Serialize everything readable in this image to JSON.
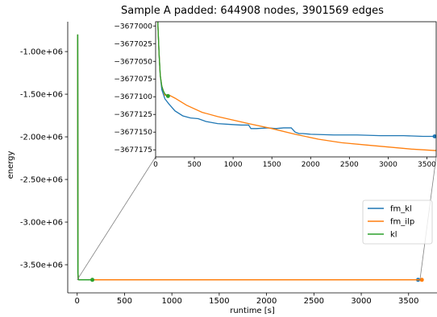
{
  "chart_data": {
    "type": "line",
    "title": "Sample A padded: 644908 nodes, 3901569 edges",
    "xlabel": "runtime [s]",
    "ylabel": "energy",
    "xlim": [
      -100,
      3800
    ],
    "ylim": [
      -3830000,
      -650000
    ],
    "xticks": [
      0,
      500,
      1000,
      1500,
      2000,
      2500,
      3000,
      3500
    ],
    "xtick_labels": [
      "0",
      "500",
      "1000",
      "1500",
      "2000",
      "2500",
      "3000",
      "3500"
    ],
    "yticks": [
      -1000000,
      -1500000,
      -2000000,
      -2500000,
      -3000000,
      -3500000
    ],
    "ytick_labels": [
      "-1.00e+06",
      "-1.50e+06",
      "-2.00e+06",
      "-2.50e+06",
      "-3.00e+06",
      "-3.50e+06"
    ],
    "legend": {
      "position": "right",
      "entries": [
        "fm_kl",
        "fm_ilp",
        "kl"
      ]
    },
    "series": [
      {
        "name": "fm_kl",
        "color": "#1f77b4",
        "x": [
          5,
          8,
          12,
          20,
          30,
          45,
          60,
          80,
          120,
          170,
          250,
          350,
          450,
          550,
          650,
          800,
          950,
          1100,
          1200,
          1230,
          1300,
          1450,
          1550,
          1650,
          1750,
          1800,
          1850,
          1900,
          2000,
          2300,
          2600,
          2900,
          3200,
          3450,
          3600
        ],
        "y": [
          -800000,
          -3600000,
          -3674000,
          -3676500,
          -3677000,
          -3677040,
          -3677070,
          -3677090,
          -3677103,
          -3677110,
          -3677120,
          -3677127,
          -3677130,
          -3677131,
          -3677135,
          -3677138,
          -3677139,
          -3677140,
          -3677140,
          -3677145,
          -3677145,
          -3677144,
          -3677145,
          -3677144,
          -3677144,
          -3677150,
          -3677152,
          -3677152,
          -3677153,
          -3677154,
          -3677154,
          -3677155,
          -3677155,
          -3677156,
          -3677156
        ],
        "markers_x": [
          3600
        ],
        "markers_y": [
          -3677156
        ]
      },
      {
        "name": "fm_ilp",
        "color": "#ff7f0e",
        "x": [
          5,
          8,
          12,
          20,
          30,
          45,
          60,
          80,
          120,
          160,
          180,
          250,
          400,
          600,
          800,
          1000,
          1200,
          1500,
          1800,
          2100,
          2400,
          2700,
          3000,
          3300,
          3600
        ],
        "y": [
          -800000,
          -3600000,
          -3674000,
          -3676500,
          -3677000,
          -3677040,
          -3677070,
          -3677085,
          -3677098,
          -3677097,
          -3677098,
          -3677102,
          -3677112,
          -3677122,
          -3677128,
          -3677133,
          -3677138,
          -3677145,
          -3677153,
          -3677160,
          -3677165,
          -3677168,
          -3677171,
          -3677174,
          -3677176
        ],
        "markers_x": [
          3640
        ],
        "markers_y": [
          -3677176
        ]
      },
      {
        "name": "kl",
        "color": "#2ca02c",
        "x": [
          5,
          8,
          12,
          20,
          30,
          45,
          60,
          80,
          100,
          120,
          140,
          160
        ],
        "y": [
          -800000,
          -3600000,
          -3674000,
          -3676500,
          -3677000,
          -3677040,
          -3677070,
          -3677085,
          -3677092,
          -3677096,
          -3677098,
          -3677099
        ],
        "markers_x": [
          160
        ],
        "markers_y": [
          -3677099
        ]
      }
    ],
    "inset": {
      "xlim": [
        0,
        3620
      ],
      "ylim": [
        -3677185,
        -3676994
      ],
      "xticks": [
        0,
        500,
        1000,
        1500,
        2000,
        2500,
        3000,
        3500
      ],
      "xtick_labels": [
        "0",
        "500",
        "1000",
        "1500",
        "2000",
        "2500",
        "3000",
        "3500"
      ],
      "yticks": [
        -3677000,
        -3677025,
        -3677050,
        -3677075,
        -3677100,
        -3677125,
        -3677150,
        -3677175
      ],
      "ytick_labels": [
        "−3677000",
        "−3677025",
        "−3677050",
        "−3677075",
        "−3677100",
        "−3677125",
        "−3677150",
        "−3677175"
      ]
    }
  }
}
